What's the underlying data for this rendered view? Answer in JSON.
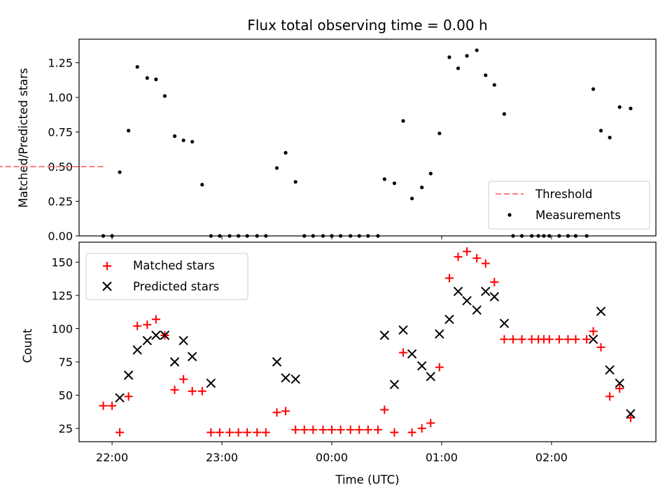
{
  "chart_data": [
    {
      "type": "line",
      "title": "Flux total observing time = 0.00 h",
      "ylabel": "Matched/Predicted stars",
      "xlabel": "",
      "ylim": [
        0,
        1.42
      ],
      "yticks": [
        0.0,
        0.25,
        0.5,
        0.75,
        1.0,
        1.25
      ],
      "ytick_labels": [
        "0.00",
        "0.25",
        "0.50",
        "0.75",
        "1.00",
        "1.25"
      ],
      "legend_position": "lower-right",
      "series": [
        {
          "name": "Threshold",
          "style": "dashed-line",
          "color": "#ff7f7f",
          "x": [
            21.92,
            2.75
          ],
          "y": [
            0.5,
            0.5
          ]
        },
        {
          "name": "Measurements",
          "style": "dots",
          "color": "#000000",
          "x": [
            21.92,
            22.0,
            22.07,
            22.15,
            22.23,
            22.32,
            22.4,
            22.48,
            22.57,
            22.65,
            22.73,
            22.82,
            22.9,
            22.98,
            23.07,
            23.15,
            23.23,
            23.32,
            23.4,
            23.5,
            23.58,
            23.67,
            23.75,
            23.83,
            23.92,
            24.0,
            24.08,
            24.17,
            24.25,
            24.33,
            24.42,
            24.48,
            24.57,
            24.65,
            24.73,
            24.82,
            24.9,
            24.98,
            25.07,
            25.15,
            25.23,
            25.32,
            25.4,
            25.48,
            25.57,
            25.65,
            25.73,
            25.82,
            25.88,
            25.93,
            25.98,
            26.07,
            26.15,
            26.22,
            26.32,
            26.38,
            26.45,
            26.53,
            26.62,
            26.72
          ],
          "y": [
            0.0,
            0.0,
            0.46,
            0.76,
            1.22,
            1.14,
            1.13,
            1.01,
            0.72,
            0.69,
            0.68,
            0.37,
            0.0,
            0.0,
            0.0,
            0.0,
            0.0,
            0.0,
            0.0,
            0.49,
            0.6,
            0.39,
            0.0,
            0.0,
            0.0,
            0.0,
            0.0,
            0.0,
            0.0,
            0.0,
            0.0,
            0.41,
            0.38,
            0.83,
            0.27,
            0.35,
            0.45,
            0.74,
            1.29,
            1.21,
            1.3,
            1.34,
            1.16,
            1.09,
            0.88,
            0.0,
            0.0,
            0.0,
            0.0,
            0.0,
            0.0,
            0.0,
            0.0,
            0.0,
            0.0,
            1.06,
            0.76,
            0.71,
            0.93,
            0.92
          ]
        }
      ]
    },
    {
      "type": "scatter",
      "title": "",
      "ylabel": "Count",
      "xlabel": "Time (UTC)",
      "ylim": [
        15,
        165
      ],
      "yticks": [
        25,
        50,
        75,
        100,
        125,
        150
      ],
      "ytick_labels": [
        "25",
        "50",
        "75",
        "100",
        "125",
        "150"
      ],
      "xlim": [
        21.7,
        26.95
      ],
      "xticks": [
        22,
        23,
        24,
        25,
        26
      ],
      "xtick_labels": [
        "22:00",
        "23:00",
        "00:00",
        "01:00",
        "02:00"
      ],
      "legend_position": "upper-left",
      "series": [
        {
          "name": "Matched stars",
          "marker": "plus",
          "color": "#ff0000",
          "x": [
            21.92,
            22.0,
            22.07,
            22.15,
            22.23,
            22.32,
            22.4,
            22.48,
            22.57,
            22.65,
            22.73,
            22.82,
            22.9,
            22.98,
            23.07,
            23.15,
            23.23,
            23.32,
            23.4,
            23.5,
            23.58,
            23.67,
            23.75,
            23.83,
            23.92,
            24.0,
            24.08,
            24.17,
            24.25,
            24.33,
            24.42,
            24.48,
            24.57,
            24.65,
            24.73,
            24.82,
            24.9,
            24.98,
            25.07,
            25.15,
            25.23,
            25.32,
            25.4,
            25.48,
            25.57,
            25.65,
            25.73,
            25.82,
            25.88,
            25.93,
            25.98,
            26.07,
            26.15,
            26.22,
            26.32,
            26.38,
            26.45,
            26.53,
            26.62,
            26.72
          ],
          "y": [
            42,
            42,
            22,
            49,
            102,
            103,
            107,
            95,
            54,
            62,
            53,
            53,
            22,
            22,
            22,
            22,
            22,
            22,
            22,
            37,
            38,
            24,
            24,
            24,
            24,
            24,
            24,
            24,
            24,
            24,
            24,
            39,
            22,
            82,
            22,
            25,
            29,
            71,
            138,
            154,
            158,
            153,
            149,
            135,
            92,
            92,
            92,
            92,
            92,
            92,
            92,
            92,
            92,
            92,
            92,
            98,
            86,
            49,
            55,
            33
          ]
        },
        {
          "name": "Predicted stars",
          "marker": "x",
          "color": "#000000",
          "x": [
            22.07,
            22.15,
            22.23,
            22.32,
            22.4,
            22.48,
            22.57,
            22.65,
            22.73,
            22.9,
            23.5,
            23.58,
            23.67,
            24.48,
            24.57,
            24.65,
            24.73,
            24.82,
            24.9,
            24.98,
            25.07,
            25.15,
            25.23,
            25.32,
            25.4,
            25.48,
            25.57,
            26.38,
            26.45,
            26.53,
            26.62,
            26.72
          ],
          "y": [
            48,
            65,
            84,
            91,
            95,
            95,
            75,
            91,
            79,
            59,
            75,
            63,
            62,
            95,
            58,
            99,
            81,
            72,
            64,
            96,
            107,
            128,
            121,
            114,
            128,
            124,
            104,
            92,
            113,
            69,
            59,
            36
          ]
        }
      ]
    }
  ]
}
